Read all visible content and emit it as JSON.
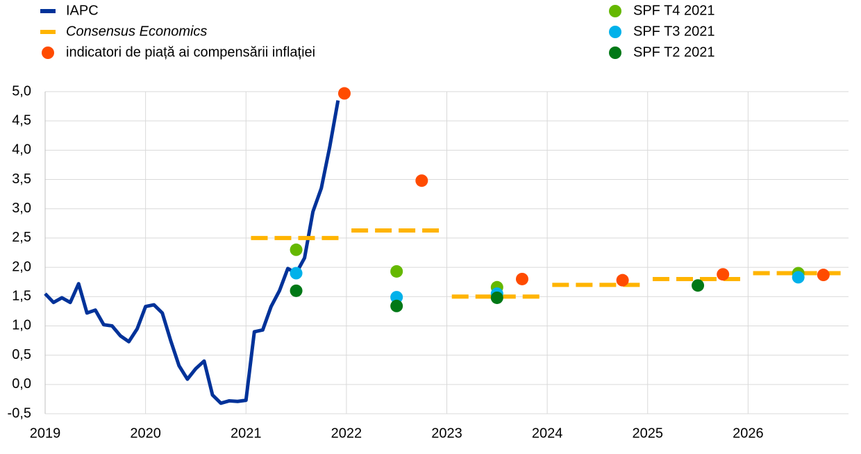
{
  "chart_data": {
    "type": "line",
    "xlim": [
      2019,
      2027
    ],
    "xticks": [
      2019,
      2020,
      2021,
      2022,
      2023,
      2024,
      2025,
      2026
    ],
    "ylim": [
      -0.5,
      5.0
    ],
    "yticks": [
      {
        "value": 5.0,
        "label": "5,0"
      },
      {
        "value": 4.5,
        "label": "4,5"
      },
      {
        "value": 4.0,
        "label": "4,0"
      },
      {
        "value": 3.5,
        "label": "3,5"
      },
      {
        "value": 3.0,
        "label": "3,0"
      },
      {
        "value": 2.5,
        "label": "2,5"
      },
      {
        "value": 2.0,
        "label": "2,0"
      },
      {
        "value": 1.5,
        "label": "1,5"
      },
      {
        "value": 1.0,
        "label": "1,0"
      },
      {
        "value": 0.5,
        "label": "0,5"
      },
      {
        "value": 0.0,
        "label": "0,0"
      },
      {
        "value": -0.5,
        "label": "-0,5"
      }
    ],
    "grid": true,
    "series": [
      {
        "name": "IAPC",
        "color": "#003299",
        "style": "line",
        "x": [
          2019.0,
          2019.0833,
          2019.1667,
          2019.25,
          2019.3333,
          2019.4167,
          2019.5,
          2019.5833,
          2019.6667,
          2019.75,
          2019.8333,
          2019.9167,
          2020.0,
          2020.0833,
          2020.1667,
          2020.25,
          2020.3333,
          2020.4167,
          2020.5,
          2020.5833,
          2020.6667,
          2020.75,
          2020.8333,
          2020.9167,
          2021.0,
          2021.0833,
          2021.1667,
          2021.25,
          2021.3333,
          2021.4167,
          2021.5,
          2021.5833,
          2021.6667,
          2021.75,
          2021.8333,
          2021.9167
        ],
        "values": [
          1.55,
          1.4,
          1.48,
          1.4,
          1.72,
          1.22,
          1.27,
          1.02,
          1.0,
          0.83,
          0.73,
          0.95,
          1.33,
          1.36,
          1.22,
          0.75,
          0.32,
          0.09,
          0.27,
          0.4,
          -0.18,
          -0.32,
          -0.28,
          -0.29,
          -0.27,
          0.9,
          0.93,
          1.33,
          1.6,
          1.98,
          1.9,
          2.16,
          2.95,
          3.35,
          4.05,
          4.85
        ]
      },
      {
        "name": "Consensus Economics",
        "color": "#ffb400",
        "style": "dash",
        "italic": true,
        "x": [
          2021,
          2022,
          2023,
          2024,
          2025,
          2026
        ],
        "values": [
          2.5,
          2.63,
          1.5,
          1.7,
          1.8,
          1.9
        ]
      },
      {
        "name": "indicatori de piață ai compensării inflației",
        "color": "#ff4b00",
        "style": "dot",
        "x": [
          2021.98,
          2022.75,
          2023.75,
          2024.75,
          2025.75,
          2026.75
        ],
        "values": [
          4.97,
          3.48,
          1.8,
          1.78,
          1.88,
          1.87
        ]
      },
      {
        "name": "SPF T4 2021",
        "color": "#65b800",
        "style": "dot",
        "x": [
          2021.5,
          2022.5,
          2023.5,
          2026.5
        ],
        "values": [
          2.3,
          1.93,
          1.66,
          1.9
        ]
      },
      {
        "name": "SPF T3 2021",
        "color": "#00b1ea",
        "style": "dot",
        "x": [
          2021.5,
          2022.5,
          2023.5,
          2026.5
        ],
        "values": [
          1.9,
          1.49,
          1.55,
          1.83
        ]
      },
      {
        "name": "SPF T2 2021",
        "color": "#007816",
        "style": "dot",
        "x": [
          2021.5,
          2022.5,
          2023.5,
          2025.5
        ],
        "values": [
          1.6,
          1.34,
          1.48,
          1.69
        ]
      }
    ]
  }
}
